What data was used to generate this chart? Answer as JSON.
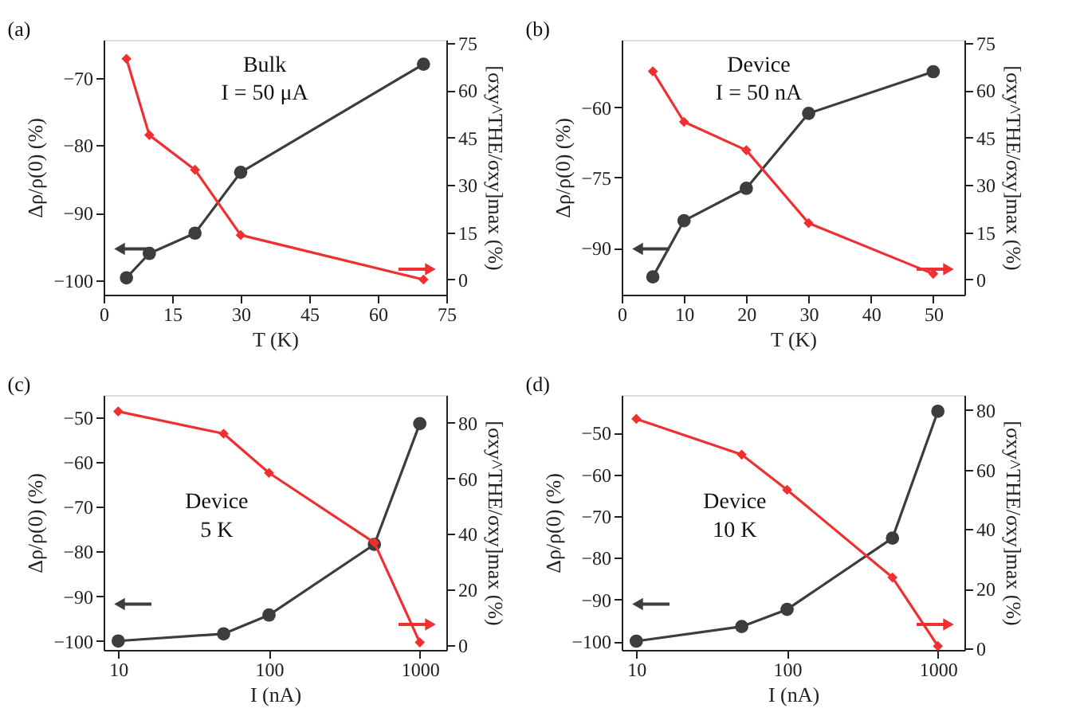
{
  "chart_data": [
    {
      "type": "line",
      "xlabel": "T (K)",
      "ylabel": "Δρ/ρ(0) (%)",
      "y2label": "[σxy^THE/σxy]max (%)",
      "annotations": [
        "(a)",
        "Bulk",
        "I = 50 μA"
      ],
      "xlim": [
        0,
        75
      ],
      "xticks": [
        0,
        15,
        30,
        45,
        60,
        75
      ],
      "ylim": [
        -102.1,
        -64.4
      ],
      "yticks": [
        -100,
        -90,
        -80,
        -70
      ],
      "y2lim": [
        -4.8,
        76
      ],
      "y2ticks": [
        0,
        15,
        30,
        45,
        60,
        75
      ],
      "grid": false,
      "series": [
        {
          "color": "#3d3d3d",
          "marker": "circle",
          "x": [
            5,
            10,
            20,
            30,
            70
          ],
          "values": [
            -99.6,
            -96,
            -93,
            -84,
            -68
          ]
        },
        {
          "color": "#f03030",
          "marker": "diamond",
          "axis": "y2",
          "x": [
            5,
            10,
            20,
            30,
            70
          ],
          "values": [
            70,
            45.8,
            34.8,
            14.1,
            0
          ]
        }
      ]
    },
    {
      "type": "line",
      "xlabel": "T (K)",
      "ylabel": "Δρ/ρ(0) (%)",
      "y2label": "[σxy^THE/σxy]max (%)",
      "annotations": [
        "(b)",
        "Device",
        "I = 50 nA"
      ],
      "xlim": [
        0,
        55
      ],
      "xticks": [
        0,
        10,
        20,
        30,
        40,
        50
      ],
      "ylim": [
        -100,
        -45.6
      ],
      "yticks": [
        -90,
        -75,
        -60
      ],
      "y2lim": [
        -4.8,
        76
      ],
      "y2ticks": [
        0,
        15,
        30,
        45,
        60,
        75
      ],
      "grid": false,
      "series": [
        {
          "color": "#3d3d3d",
          "marker": "circle",
          "x": [
            5,
            10,
            20,
            30,
            50
          ],
          "values": [
            -96.2,
            -84.2,
            -77.3,
            -61.3,
            -52.4
          ]
        },
        {
          "color": "#f03030",
          "marker": "diamond",
          "axis": "y2",
          "x": [
            5,
            10,
            20,
            30,
            50
          ],
          "values": [
            66,
            50,
            41,
            17.9,
            1.8
          ]
        }
      ]
    },
    {
      "type": "line",
      "xlabel": "I (nA)",
      "ylabel": "Δρ/ρ(0) (%)",
      "y2label": "[σxy^THE/σxy]max (%)",
      "annotations": [
        "(c)",
        "Device",
        "5 K"
      ],
      "log": "x",
      "xlim": [
        8,
        1500
      ],
      "xticks": [
        10,
        100,
        1000
      ],
      "ylim": [
        -102,
        -45
      ],
      "yticks": [
        -100,
        -90,
        -80,
        -70,
        -60,
        -50
      ],
      "y2lim": [
        -1.7,
        90
      ],
      "y2ticks": [
        0,
        20,
        40,
        60,
        80
      ],
      "grid": false,
      "series": [
        {
          "color": "#3d3d3d",
          "marker": "circle",
          "x": [
            10,
            50,
            100,
            500,
            1000
          ],
          "values": [
            -100,
            -98.4,
            -94.2,
            -78.4,
            -51.4
          ]
        },
        {
          "color": "#f03030",
          "marker": "diamond",
          "axis": "y2",
          "x": [
            10,
            50,
            100,
            500,
            1000
          ],
          "values": [
            84.1,
            76.1,
            62,
            36.9,
            1
          ]
        }
      ]
    },
    {
      "type": "line",
      "xlabel": "I (nA)",
      "ylabel": "Δρ/ρ(0) (%)",
      "y2label": "[σxy^THE/σxy]max (%)",
      "annotations": [
        "(d)",
        "Device",
        "10 K"
      ],
      "log": "x",
      "xlim": [
        8,
        1500
      ],
      "xticks": [
        10,
        100,
        1000
      ],
      "ylim": [
        -102.1,
        -41
      ],
      "yticks": [
        -100,
        -90,
        -80,
        -70,
        -60,
        -50
      ],
      "y2lim": [
        -0.5,
        85
      ],
      "y2ticks": [
        0,
        20,
        40,
        60,
        80
      ],
      "grid": false,
      "series": [
        {
          "color": "#3d3d3d",
          "marker": "circle",
          "x": [
            10,
            50,
            100,
            500,
            1000
          ],
          "values": [
            -100,
            -96.5,
            -92.4,
            -75.3,
            -44.9
          ]
        },
        {
          "color": "#f03030",
          "marker": "diamond",
          "axis": "y2",
          "x": [
            10,
            50,
            100,
            500,
            1000
          ],
          "values": [
            77,
            65,
            53.2,
            23.8,
            0.8
          ]
        }
      ]
    }
  ]
}
